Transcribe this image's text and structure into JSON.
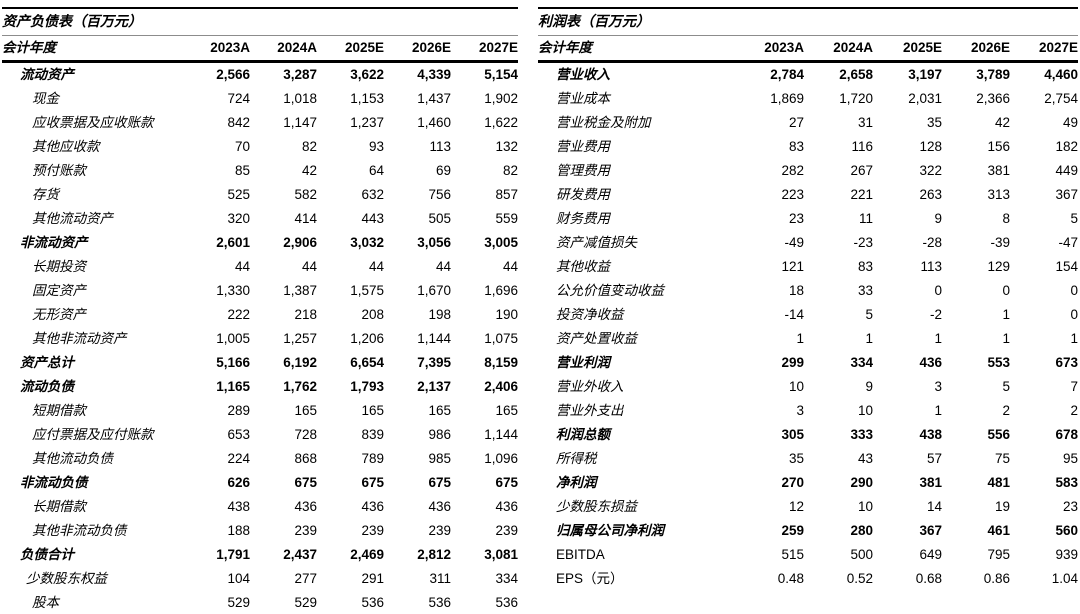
{
  "unit_note": "百万元",
  "text_color": "#000000",
  "rule_color_heavy": "#000000",
  "rule_color_light": "#8c8c8c",
  "tables": [
    {
      "title": "资产负债表（百万元）",
      "header": {
        "label": "会计年度",
        "years": [
          "2023A",
          "2024A",
          "2025E",
          "2026E",
          "2027E"
        ]
      },
      "rows": [
        {
          "label": "流动资产",
          "bold": true,
          "indent": 1,
          "plain": false,
          "values": [
            "2,566",
            "3,287",
            "3,622",
            "4,339",
            "5,154"
          ]
        },
        {
          "label": "现金",
          "bold": false,
          "indent": 2,
          "plain": false,
          "values": [
            "724",
            "1,018",
            "1,153",
            "1,437",
            "1,902"
          ]
        },
        {
          "label": "应收票据及应收账款",
          "bold": false,
          "indent": 2,
          "plain": false,
          "values": [
            "842",
            "1,147",
            "1,237",
            "1,460",
            "1,622"
          ]
        },
        {
          "label": "其他应收款",
          "bold": false,
          "indent": 2,
          "plain": false,
          "values": [
            "70",
            "82",
            "93",
            "113",
            "132"
          ]
        },
        {
          "label": "预付账款",
          "bold": false,
          "indent": 2,
          "plain": false,
          "values": [
            "85",
            "42",
            "64",
            "69",
            "82"
          ]
        },
        {
          "label": "存货",
          "bold": false,
          "indent": 2,
          "plain": false,
          "values": [
            "525",
            "582",
            "632",
            "756",
            "857"
          ]
        },
        {
          "label": "其他流动资产",
          "bold": false,
          "indent": 2,
          "plain": false,
          "values": [
            "320",
            "414",
            "443",
            "505",
            "559"
          ]
        },
        {
          "label": "非流动资产",
          "bold": true,
          "indent": 1,
          "plain": false,
          "values": [
            "2,601",
            "2,906",
            "3,032",
            "3,056",
            "3,005"
          ]
        },
        {
          "label": "长期投资",
          "bold": false,
          "indent": 2,
          "plain": false,
          "values": [
            "44",
            "44",
            "44",
            "44",
            "44"
          ]
        },
        {
          "label": "固定资产",
          "bold": false,
          "indent": 2,
          "plain": false,
          "values": [
            "1,330",
            "1,387",
            "1,575",
            "1,670",
            "1,696"
          ]
        },
        {
          "label": "无形资产",
          "bold": false,
          "indent": 2,
          "plain": false,
          "values": [
            "222",
            "218",
            "208",
            "198",
            "190"
          ]
        },
        {
          "label": "其他非流动资产",
          "bold": false,
          "indent": 2,
          "plain": false,
          "values": [
            "1,005",
            "1,257",
            "1,206",
            "1,144",
            "1,075"
          ]
        },
        {
          "label": "资产总计",
          "bold": true,
          "indent": 1,
          "plain": false,
          "values": [
            "5,166",
            "6,192",
            "6,654",
            "7,395",
            "8,159"
          ]
        },
        {
          "label": "流动负债",
          "bold": true,
          "indent": 1,
          "plain": false,
          "values": [
            "1,165",
            "1,762",
            "1,793",
            "2,137",
            "2,406"
          ]
        },
        {
          "label": "短期借款",
          "bold": false,
          "indent": 2,
          "plain": false,
          "values": [
            "289",
            "165",
            "165",
            "165",
            "165"
          ]
        },
        {
          "label": "应付票据及应付账款",
          "bold": false,
          "indent": 2,
          "plain": false,
          "values": [
            "653",
            "728",
            "839",
            "986",
            "1,144"
          ]
        },
        {
          "label": "其他流动负债",
          "bold": false,
          "indent": 2,
          "plain": false,
          "values": [
            "224",
            "868",
            "789",
            "985",
            "1,096"
          ]
        },
        {
          "label": "非流动负债",
          "bold": true,
          "indent": 1,
          "plain": false,
          "values": [
            "626",
            "675",
            "675",
            "675",
            "675"
          ]
        },
        {
          "label": "长期借款",
          "bold": false,
          "indent": 2,
          "plain": false,
          "values": [
            "438",
            "436",
            "436",
            "436",
            "436"
          ]
        },
        {
          "label": "其他非流动负债",
          "bold": false,
          "indent": 2,
          "plain": false,
          "values": [
            "188",
            "239",
            "239",
            "239",
            "239"
          ]
        },
        {
          "label": "负债合计",
          "bold": true,
          "indent": 1,
          "plain": false,
          "values": [
            "1,791",
            "2,437",
            "2,469",
            "2,812",
            "3,081"
          ]
        },
        {
          "label": "少数股东权益",
          "bold": false,
          "indent": 1.5,
          "plain": false,
          "values": [
            "104",
            "277",
            "291",
            "311",
            "334"
          ]
        },
        {
          "label": "股本",
          "bold": false,
          "indent": 2,
          "plain": false,
          "values": [
            "529",
            "529",
            "536",
            "536",
            "536"
          ]
        }
      ]
    },
    {
      "title": "利润表（百万元）",
      "header": {
        "label": "会计年度",
        "years": [
          "2023A",
          "2024A",
          "2025E",
          "2026E",
          "2027E"
        ]
      },
      "rows": [
        {
          "label": "营业收入",
          "bold": true,
          "indent": 1,
          "plain": false,
          "values": [
            "2,784",
            "2,658",
            "3,197",
            "3,789",
            "4,460"
          ]
        },
        {
          "label": "营业成本",
          "bold": false,
          "indent": 1,
          "plain": false,
          "values": [
            "1,869",
            "1,720",
            "2,031",
            "2,366",
            "2,754"
          ]
        },
        {
          "label": "营业税金及附加",
          "bold": false,
          "indent": 1,
          "plain": false,
          "values": [
            "27",
            "31",
            "35",
            "42",
            "49"
          ]
        },
        {
          "label": "营业费用",
          "bold": false,
          "indent": 1,
          "plain": false,
          "values": [
            "83",
            "116",
            "128",
            "156",
            "182"
          ]
        },
        {
          "label": "管理费用",
          "bold": false,
          "indent": 1,
          "plain": false,
          "values": [
            "282",
            "267",
            "322",
            "381",
            "449"
          ]
        },
        {
          "label": "研发费用",
          "bold": false,
          "indent": 1,
          "plain": false,
          "values": [
            "223",
            "221",
            "263",
            "313",
            "367"
          ]
        },
        {
          "label": "财务费用",
          "bold": false,
          "indent": 1,
          "plain": false,
          "values": [
            "23",
            "11",
            "9",
            "8",
            "5"
          ]
        },
        {
          "label": "资产减值损失",
          "bold": false,
          "indent": 1,
          "plain": false,
          "values": [
            "-49",
            "-23",
            "-28",
            "-39",
            "-47"
          ]
        },
        {
          "label": "其他收益",
          "bold": false,
          "indent": 1,
          "plain": false,
          "values": [
            "121",
            "83",
            "113",
            "129",
            "154"
          ]
        },
        {
          "label": "公允价值变动收益",
          "bold": false,
          "indent": 1,
          "plain": false,
          "values": [
            "18",
            "33",
            "0",
            "0",
            "0"
          ]
        },
        {
          "label": "投资净收益",
          "bold": false,
          "indent": 1,
          "plain": false,
          "values": [
            "-14",
            "5",
            "-2",
            "1",
            "0"
          ]
        },
        {
          "label": "资产处置收益",
          "bold": false,
          "indent": 1,
          "plain": false,
          "values": [
            "1",
            "1",
            "1",
            "1",
            "1"
          ]
        },
        {
          "label": "营业利润",
          "bold": true,
          "indent": 1,
          "plain": false,
          "values": [
            "299",
            "334",
            "436",
            "553",
            "673"
          ]
        },
        {
          "label": "营业外收入",
          "bold": false,
          "indent": 1,
          "plain": false,
          "values": [
            "10",
            "9",
            "3",
            "5",
            "7"
          ]
        },
        {
          "label": "营业外支出",
          "bold": false,
          "indent": 1,
          "plain": false,
          "values": [
            "3",
            "10",
            "1",
            "2",
            "2"
          ]
        },
        {
          "label": "利润总额",
          "bold": true,
          "indent": 1,
          "plain": false,
          "values": [
            "305",
            "333",
            "438",
            "556",
            "678"
          ]
        },
        {
          "label": "所得税",
          "bold": false,
          "indent": 1,
          "plain": false,
          "values": [
            "35",
            "43",
            "57",
            "75",
            "95"
          ]
        },
        {
          "label": "净利润",
          "bold": true,
          "indent": 1,
          "plain": false,
          "values": [
            "270",
            "290",
            "381",
            "481",
            "583"
          ]
        },
        {
          "label": "少数股东损益",
          "bold": false,
          "indent": 1,
          "plain": false,
          "values": [
            "12",
            "10",
            "14",
            "19",
            "23"
          ]
        },
        {
          "label": "归属母公司净利润",
          "bold": true,
          "indent": 1,
          "plain": false,
          "values": [
            "259",
            "280",
            "367",
            "461",
            "560"
          ]
        },
        {
          "label": "EBITDA",
          "bold": false,
          "indent": 1,
          "plain": true,
          "values": [
            "515",
            "500",
            "649",
            "795",
            "939"
          ]
        },
        {
          "label": "EPS（元）",
          "bold": false,
          "indent": 1,
          "plain": true,
          "values": [
            "0.48",
            "0.52",
            "0.68",
            "0.86",
            "1.04"
          ]
        }
      ]
    }
  ]
}
